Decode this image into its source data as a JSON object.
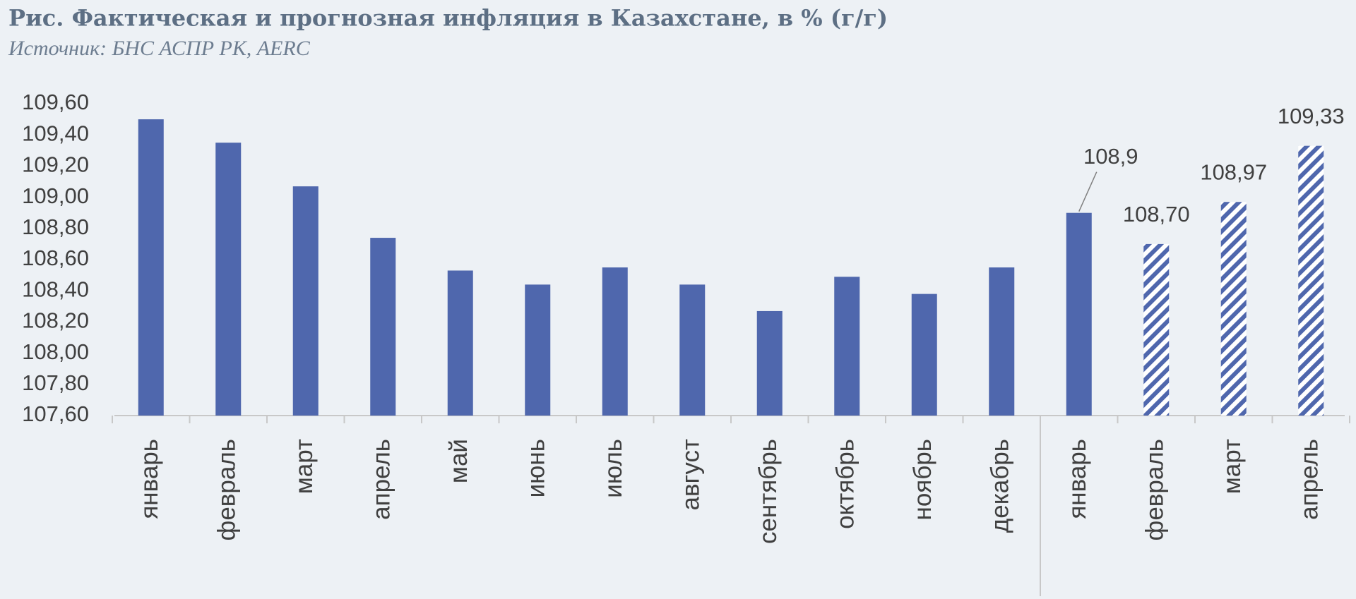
{
  "chart_data": {
    "type": "bar",
    "title": "Рис. Фактическая и прогнозная инфляция в Казахстане, в % (г/г)",
    "subtitle": "Источник: БНС АСПР РК, AERC",
    "categories": [
      "январь",
      "февраль",
      "март",
      "апрель",
      "май",
      "июнь",
      "июль",
      "август",
      "сентябрь",
      "октябрь",
      "ноябрь",
      "декабрь",
      "январь",
      "февраль",
      "март",
      "апрель"
    ],
    "values": [
      109.5,
      109.35,
      109.07,
      108.74,
      108.53,
      108.44,
      108.55,
      108.44,
      108.27,
      108.49,
      108.38,
      108.55,
      108.9,
      108.7,
      108.97,
      109.33
    ],
    "value_labels": [
      null,
      null,
      null,
      null,
      null,
      null,
      null,
      null,
      null,
      null,
      null,
      null,
      "108,9",
      "108,70",
      "108,97",
      "109,33"
    ],
    "hatched": [
      false,
      false,
      false,
      false,
      false,
      false,
      false,
      false,
      false,
      false,
      false,
      false,
      false,
      true,
      true,
      true
    ],
    "color": "#4f67ad",
    "ylim": [
      107.6,
      109.6
    ],
    "yticks": [
      {
        "value": 107.6,
        "label": "107,60"
      },
      {
        "value": 107.8,
        "label": "107,80"
      },
      {
        "value": 108.0,
        "label": "108,00"
      },
      {
        "value": 108.2,
        "label": "108,20"
      },
      {
        "value": 108.4,
        "label": "108,40"
      },
      {
        "value": 108.6,
        "label": "108,60"
      },
      {
        "value": 108.8,
        "label": "108,80"
      },
      {
        "value": 109.0,
        "label": "109,00"
      },
      {
        "value": 109.2,
        "label": "109,20"
      },
      {
        "value": 109.4,
        "label": "109,40"
      },
      {
        "value": 109.6,
        "label": "109,60"
      }
    ],
    "grid": false
  }
}
